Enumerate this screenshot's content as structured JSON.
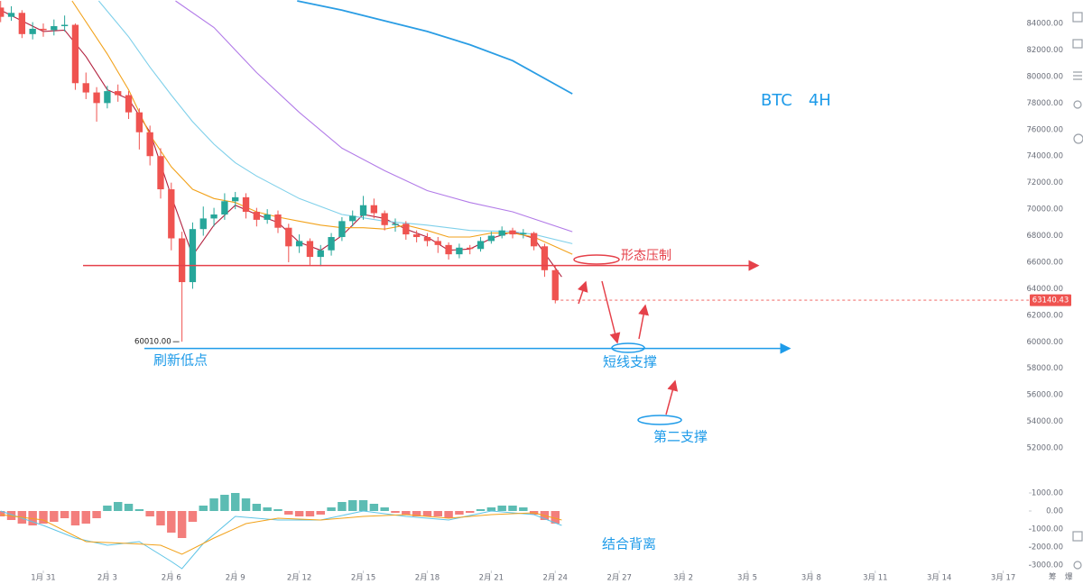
{
  "chart_data": [
    {
      "type": "candlestick",
      "title": "BTC　4H",
      "x": [
        -2,
        -1.5,
        -1,
        -0.5,
        0,
        0.5,
        1,
        1.5,
        2,
        2.5,
        3,
        3.5,
        4,
        4.5,
        5,
        5.5,
        6,
        6.5,
        7,
        7.5,
        8,
        8.5,
        9,
        9.5,
        10,
        10.5,
        11,
        11.5,
        12,
        12.5,
        13,
        13.5,
        14,
        14.5,
        15,
        15.5,
        16,
        16.5,
        17,
        17.5,
        18,
        18.5,
        19,
        19.5,
        20,
        20.5,
        21,
        21.5,
        22,
        22.5,
        23,
        23.5,
        24
      ],
      "open": [
        85200,
        84500,
        84800,
        83200,
        83600,
        83500,
        83800,
        83900,
        79500,
        78800,
        78000,
        78900,
        78600,
        77300,
        75800,
        74000,
        71500,
        67800,
        64500,
        68500,
        69300,
        69600,
        70600,
        70900,
        69800,
        69200,
        69600,
        68600,
        67200,
        67600,
        66400,
        66900,
        67900,
        69100,
        69500,
        70300,
        69700,
        68800,
        68900,
        68100,
        67900,
        67600,
        67300,
        66600,
        67100,
        67000,
        67600,
        68000,
        68400,
        68100,
        68200,
        67200,
        65400
      ],
      "high": [
        85700,
        85300,
        85000,
        84100,
        84000,
        84300,
        84600,
        84000,
        80300,
        79200,
        79300,
        79400,
        78900,
        77600,
        76300,
        74600,
        72000,
        68300,
        69000,
        70200,
        70100,
        71200,
        71300,
        71200,
        70100,
        70000,
        69900,
        68900,
        68100,
        67800,
        67300,
        68200,
        69400,
        69900,
        71000,
        70800,
        69900,
        69300,
        69100,
        68400,
        68200,
        67900,
        67500,
        67400,
        67300,
        67900,
        68300,
        68700,
        68600,
        68500,
        68300,
        67400,
        65700
      ],
      "low": [
        84100,
        84200,
        82900,
        82800,
        83000,
        83100,
        83400,
        79000,
        78300,
        76600,
        77600,
        78100,
        76800,
        74500,
        73300,
        70800,
        66900,
        60010,
        64000,
        68000,
        68700,
        69200,
        70000,
        69300,
        68700,
        68900,
        68200,
        66000,
        66700,
        65800,
        65700,
        66500,
        67600,
        68700,
        69200,
        69300,
        68400,
        68300,
        67700,
        67500,
        67200,
        66700,
        66200,
        66300,
        66600,
        66800,
        67400,
        67800,
        67800,
        67800,
        66900,
        64900,
        62900
      ],
      "close": [
        84500,
        84800,
        83200,
        83600,
        83500,
        83800,
        83900,
        79500,
        78800,
        78000,
        78900,
        78600,
        77300,
        75800,
        74000,
        71500,
        67800,
        64500,
        68500,
        69300,
        69600,
        70600,
        70900,
        69800,
        69200,
        69600,
        68600,
        67200,
        67600,
        66400,
        66900,
        67900,
        69100,
        69500,
        70300,
        69700,
        68800,
        68900,
        68100,
        67900,
        67600,
        67300,
        66600,
        67100,
        67000,
        67600,
        68000,
        68400,
        68100,
        68200,
        67200,
        65400,
        63140.43
      ],
      "up_color": "#26a69a",
      "down_color": "#ef5350",
      "moving_averages": [
        {
          "color": "#b2223f",
          "x": [
            -2,
            -1,
            0,
            1,
            2,
            3,
            4,
            5,
            6,
            7,
            8,
            9,
            10,
            11,
            12,
            13,
            14,
            15,
            16,
            17,
            18,
            19,
            20,
            21,
            22,
            23,
            24.3
          ],
          "values": [
            85000,
            84200,
            83400,
            83500,
            81500,
            79000,
            78300,
            75800,
            71000,
            66500,
            68800,
            70300,
            69600,
            69000,
            67500,
            66900,
            68000,
            69600,
            69300,
            68500,
            67900,
            66900,
            67000,
            67800,
            68300,
            67800,
            64900
          ]
        },
        {
          "color": "#f2a21b",
          "x": [
            1.35,
            3,
            4,
            5,
            6,
            7,
            8,
            9,
            10,
            11,
            12,
            13,
            14,
            15,
            16,
            17,
            18,
            19,
            20,
            21,
            22,
            23,
            24.8
          ],
          "values": [
            85700,
            81700,
            79000,
            75600,
            73200,
            71500,
            70800,
            70500,
            69800,
            69400,
            69100,
            68800,
            68600,
            68600,
            68500,
            68800,
            68400,
            67900,
            67900,
            68200,
            68200,
            67900,
            66600
          ]
        },
        {
          "color": "#7fd0ea",
          "x": [
            2.6,
            4,
            5,
            6,
            7,
            8,
            9,
            10,
            12,
            14,
            16,
            18,
            20,
            22,
            23,
            24.8
          ],
          "values": [
            85700,
            83000,
            80700,
            78600,
            76600,
            74900,
            73500,
            72500,
            70800,
            69600,
            69100,
            68800,
            68400,
            68300,
            68100,
            67400
          ]
        },
        {
          "color": "#b27be8",
          "x": [
            6.2,
            8,
            10,
            12,
            14,
            16,
            18,
            20,
            22,
            24.8
          ],
          "values": [
            85700,
            83700,
            80300,
            77300,
            74600,
            72900,
            71400,
            70500,
            69800,
            68300
          ]
        },
        {
          "color": "#2a9de4",
          "x": [
            11.9,
            14,
            16,
            18,
            20,
            22,
            24.8
          ],
          "values": [
            85700,
            85000,
            84200,
            83400,
            82400,
            81200,
            78700
          ]
        }
      ],
      "xlim": [
        -2.03,
        46.2
      ],
      "xticks": [
        {
          "value": 0,
          "label": "1月 31"
        },
        {
          "value": 3,
          "label": "2月 3"
        },
        {
          "value": 6,
          "label": "2月 6"
        },
        {
          "value": 9,
          "label": "2月 9"
        },
        {
          "value": 12,
          "label": "2月 12"
        },
        {
          "value": 15,
          "label": "2月 15"
        },
        {
          "value": 18,
          "label": "2月 18"
        },
        {
          "value": 21,
          "label": "2月 21"
        },
        {
          "value": 24,
          "label": "2月 24"
        },
        {
          "value": 27,
          "label": "2月 27"
        },
        {
          "value": 30,
          "label": "3月 2"
        },
        {
          "value": 33,
          "label": "3月 5"
        },
        {
          "value": 36,
          "label": "3月 8"
        },
        {
          "value": 39,
          "label": "3月 11"
        },
        {
          "value": 42,
          "label": "3月 14"
        },
        {
          "value": 45,
          "label": "3月 17"
        }
      ],
      "ylim": [
        49760,
        85770
      ],
      "yticks": [
        {
          "value": 52000,
          "label": "52000.00"
        },
        {
          "value": 54000,
          "label": "54000.00"
        },
        {
          "value": 56000,
          "label": "56000.00"
        },
        {
          "value": 58000,
          "label": "58000.00"
        },
        {
          "value": 60000,
          "label": "60000.00"
        },
        {
          "value": 62000,
          "label": "62000.00"
        },
        {
          "value": 64000,
          "label": "64000.00"
        },
        {
          "value": 66000,
          "label": "66000.00"
        },
        {
          "value": 68000,
          "label": "68000.00"
        },
        {
          "value": 70000,
          "label": "70000.00"
        },
        {
          "value": 72000,
          "label": "72000.00"
        },
        {
          "value": 74000,
          "label": "74000.00"
        },
        {
          "value": 76000,
          "label": "76000.00"
        },
        {
          "value": 78000,
          "label": "78000.00"
        },
        {
          "value": 80000,
          "label": "80000.00"
        },
        {
          "value": 82000,
          "label": "82000.00"
        },
        {
          "value": 84000,
          "label": "84000.00"
        }
      ],
      "grid": false,
      "last_price": {
        "value": 63140.43,
        "label": "63140.43",
        "color": "#ef5350"
      },
      "low_marker": {
        "value": 60010,
        "label": "60010.00"
      },
      "levels": [
        {
          "value": 65750,
          "color": "#e5414a"
        },
        {
          "value": 59500,
          "color": "#1e9be9"
        }
      ],
      "annotations": [
        "形态压制",
        "刷新低点",
        "短线支撑",
        "第二支撑",
        "结合背离"
      ]
    },
    {
      "type": "macd",
      "x": [
        -2,
        -1.5,
        -1,
        -0.5,
        0,
        0.5,
        1,
        1.5,
        2,
        2.5,
        3,
        3.5,
        4,
        4.5,
        5,
        5.5,
        6,
        6.5,
        7,
        7.5,
        8,
        8.5,
        9,
        9.5,
        10,
        10.5,
        11,
        11.5,
        12,
        12.5,
        13,
        13.5,
        14,
        14.5,
        15,
        15.5,
        16,
        16.5,
        17,
        17.5,
        18,
        18.5,
        19,
        19.5,
        20,
        20.5,
        21,
        21.5,
        22,
        22.5,
        23,
        23.5,
        24
      ],
      "histogram": [
        -300,
        -500,
        -700,
        -800,
        -700,
        -600,
        -400,
        -800,
        -700,
        -400,
        300,
        500,
        400,
        100,
        -300,
        -800,
        -1200,
        -1500,
        -600,
        300,
        700,
        900,
        1000,
        700,
        400,
        200,
        100,
        -200,
        -300,
        -300,
        -200,
        200,
        500,
        600,
        600,
        400,
        200,
        -100,
        -200,
        -300,
        -300,
        -300,
        -400,
        -200,
        -100,
        100,
        200,
        300,
        300,
        200,
        -200,
        -500,
        -700
      ],
      "up_color": "#26a69a",
      "down_color": "#ef5350",
      "series": [
        {
          "color": "#5ec4e6",
          "x": [
            -2,
            0,
            1.5,
            3,
            4.5,
            6,
            6.5,
            7.5,
            9,
            11,
            13,
            15,
            17,
            19,
            21,
            23,
            24.3
          ],
          "values": [
            0,
            -800,
            -1500,
            -1900,
            -1700,
            -2800,
            -3200,
            -1800,
            -300,
            -500,
            -500,
            0,
            -300,
            -500,
            0,
            -200,
            -800
          ]
        },
        {
          "color": "#f2a21b",
          "x": [
            -2,
            0,
            2,
            4,
            5.5,
            6.5,
            8,
            9.5,
            11,
            13,
            15,
            17,
            19,
            21,
            23,
            24.3
          ],
          "values": [
            -200,
            -500,
            -1700,
            -1800,
            -1900,
            -2400,
            -1500,
            -700,
            -400,
            -500,
            -300,
            -200,
            -400,
            -200,
            -100,
            -500
          ]
        }
      ],
      "xlim": [
        -2.03,
        46.2
      ],
      "ylim": [
        -3250,
        1500
      ],
      "yticks": [
        {
          "value": 1000,
          "label": "1000.00"
        },
        {
          "value": 0,
          "label": "0.00"
        },
        {
          "value": -1000,
          "label": "-1000.00"
        },
        {
          "value": -2000,
          "label": "-2000.00"
        },
        {
          "value": -3000,
          "label": "-3000.00"
        }
      ]
    }
  ],
  "toolbar": {
    "labels": [
      "筹",
      "爆"
    ]
  }
}
